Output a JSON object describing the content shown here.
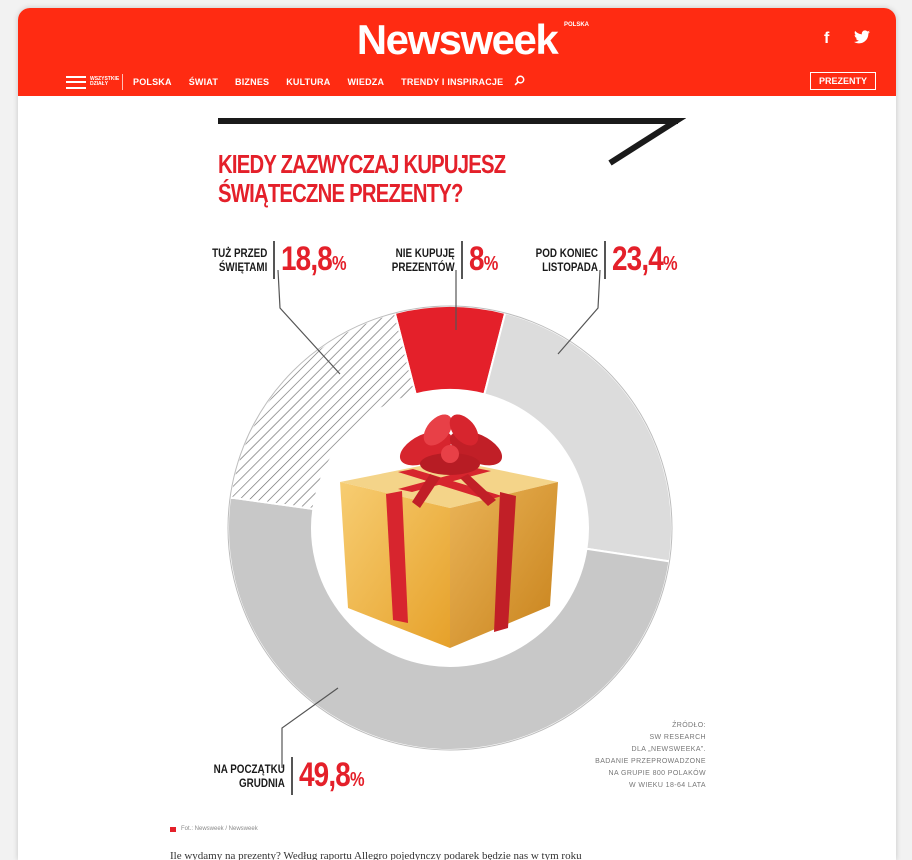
{
  "header": {
    "logo": "Newsweek",
    "logo_sup": "POLSKA",
    "menu_label": "WSZYSTKIE DZIAŁY",
    "nav": [
      "POLSKA",
      "ŚWIAT",
      "BIZNES",
      "KULTURA",
      "WIEDZA",
      "TRENDY I INSPIRACJE"
    ],
    "presents_button": "PREZENTY",
    "social": {
      "facebook": "f",
      "twitter": "🐦"
    }
  },
  "infographic": {
    "title_line1": "KIEDY ZAZWYCZAJ KUPUJESZ",
    "title_line2": "ŚWIĄTECZNE PREZENTY?",
    "labels": {
      "przed_swietami": {
        "line1": "TUŻ PRZED",
        "line2": "ŚWIĘTAMI",
        "value": "18,8",
        "unit": "%"
      },
      "nie_kupuje": {
        "line1": "NIE KUPUJĘ",
        "line2": "PREZENTÓW",
        "value": "8",
        "unit": "%"
      },
      "koniec_listopada": {
        "line1": "POD KONIEC",
        "line2": "LISTOPADA",
        "value": "23,4",
        "unit": "%"
      },
      "poczatek_grudnia": {
        "line1": "NA POCZĄTKU",
        "line2": "GRUDNIA",
        "value": "49,8",
        "unit": "%"
      }
    },
    "source_lines": [
      "ŹRÓDŁO:",
      "SW RESEARCH",
      "DLA „NEWSWEEKA”.",
      "BADANIE PRZEPROWADZONE",
      "NA GRUPIE 800 POLAKÓW",
      "W WIEKU 18-64 LATA"
    ]
  },
  "chart_data": {
    "type": "pie",
    "title": "KIEDY ZAZWYCZAJ KUPUJESZ ŚWIĄTECZNE PREZENTY?",
    "slices": [
      {
        "label": "NIE KUPUJĘ PREZENTÓW",
        "value": 8,
        "fill": "#e4202a"
      },
      {
        "label": "POD KONIEC LISTOPADA",
        "value": 23.4,
        "fill": "#dcdcdc"
      },
      {
        "label": "NA POCZĄTKU GRUDNIA",
        "value": 49.8,
        "fill": "#c8c8c8"
      },
      {
        "label": "TUŻ PRZED ŚWIĘTAMI",
        "value": 18.8,
        "fill": "hatch"
      }
    ]
  },
  "caption": "Fot.: Newsweek / Newsweek",
  "article_snippet": "Ile wydamy na prezenty? Według raportu Allegro pojedynczy podarek będzie nas w tym roku",
  "colors": {
    "brand_red": "#ff2b12",
    "accent_red": "#e4202a"
  }
}
